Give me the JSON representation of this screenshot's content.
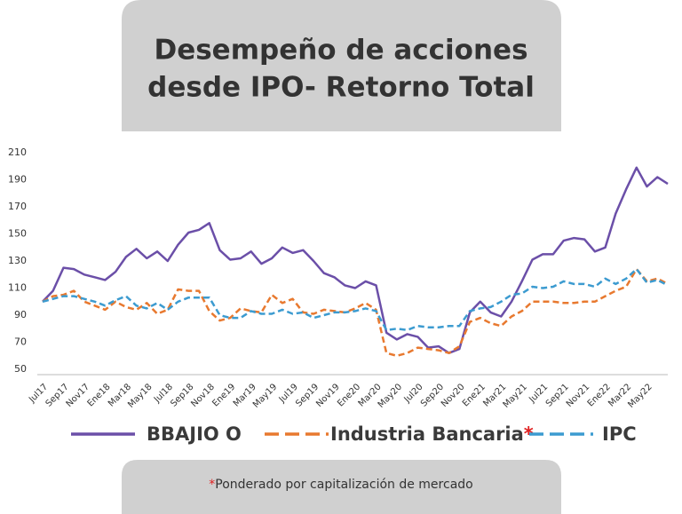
{
  "chart_data": {
    "type": "line",
    "title": [
      "Desempeño de acciones",
      "desde IPO- Retorno Total"
    ],
    "categories": [
      "Jul17",
      null,
      "Sep17",
      null,
      "Nov17",
      null,
      "Ene18",
      null,
      "Mar18",
      null,
      "May18",
      null,
      "Jul18",
      null,
      "Sep18",
      null,
      "Nov18",
      null,
      "Ene19",
      null,
      "Mar19",
      null,
      "May19",
      null,
      "Jul19",
      null,
      "Sep19",
      null,
      "Nov19",
      null,
      "Ene20",
      null,
      "Mar20",
      null,
      "May20",
      null,
      "Jul20",
      null,
      "Sep20",
      null,
      "Nov20",
      null,
      "Ene21",
      null,
      "Mar21",
      null,
      "May21",
      null,
      "Jul21",
      null,
      "Sep21",
      null,
      "Nov21",
      null,
      "Ene22",
      null,
      "Mar22",
      null,
      "May22",
      null,
      null
    ],
    "series": [
      {
        "name": "BBAJIO O",
        "color": "#6b4fa8",
        "dashed": false,
        "values": [
          100,
          108,
          125,
          124,
          120,
          118,
          116,
          122,
          133,
          139,
          132,
          137,
          130,
          142,
          151,
          153,
          158,
          138,
          131,
          132,
          137,
          128,
          132,
          140,
          136,
          138,
          130,
          121,
          118,
          112,
          110,
          115,
          112,
          77,
          72,
          76,
          74,
          66,
          67,
          62,
          65,
          92,
          100,
          92,
          89,
          100,
          115,
          131,
          135,
          135,
          145,
          147,
          146,
          137,
          140,
          165,
          183,
          199,
          185,
          192,
          187
        ]
      },
      {
        "name": "Industria Bancaria",
        "color": "#e8792f",
        "dashed": true,
        "values": [
          100,
          104,
          105,
          108,
          100,
          97,
          94,
          100,
          96,
          94,
          99,
          91,
          94,
          109,
          108,
          108,
          93,
          86,
          88,
          95,
          93,
          92,
          105,
          99,
          102,
          92,
          91,
          94,
          93,
          92,
          95,
          99,
          94,
          62,
          60,
          62,
          66,
          65,
          64,
          62,
          67,
          85,
          88,
          84,
          82,
          89,
          93,
          100,
          100,
          100,
          99,
          99,
          100,
          100,
          104,
          108,
          111,
          124,
          115,
          117,
          113
        ]
      },
      {
        "name": "IPC",
        "color": "#3c9bd0",
        "dashed": true,
        "values": [
          100,
          102,
          104,
          104,
          102,
          100,
          97,
          101,
          104,
          97,
          95,
          99,
          94,
          100,
          103,
          103,
          103,
          90,
          88,
          88,
          93,
          91,
          91,
          94,
          91,
          92,
          88,
          90,
          92,
          92,
          93,
          95,
          93,
          79,
          80,
          79,
          82,
          81,
          81,
          82,
          82,
          93,
          95,
          96,
          100,
          105,
          106,
          111,
          110,
          111,
          115,
          113,
          113,
          111,
          117,
          113,
          117,
          124,
          114,
          116,
          112
        ]
      }
    ],
    "ylim": [
      50,
      210
    ],
    "yticks": [
      50,
      70,
      90,
      110,
      130,
      150,
      170,
      190,
      210
    ],
    "grid": false,
    "footnote": {
      "marker": "*",
      "text": "Ponderado por capitalización de mercado"
    }
  }
}
